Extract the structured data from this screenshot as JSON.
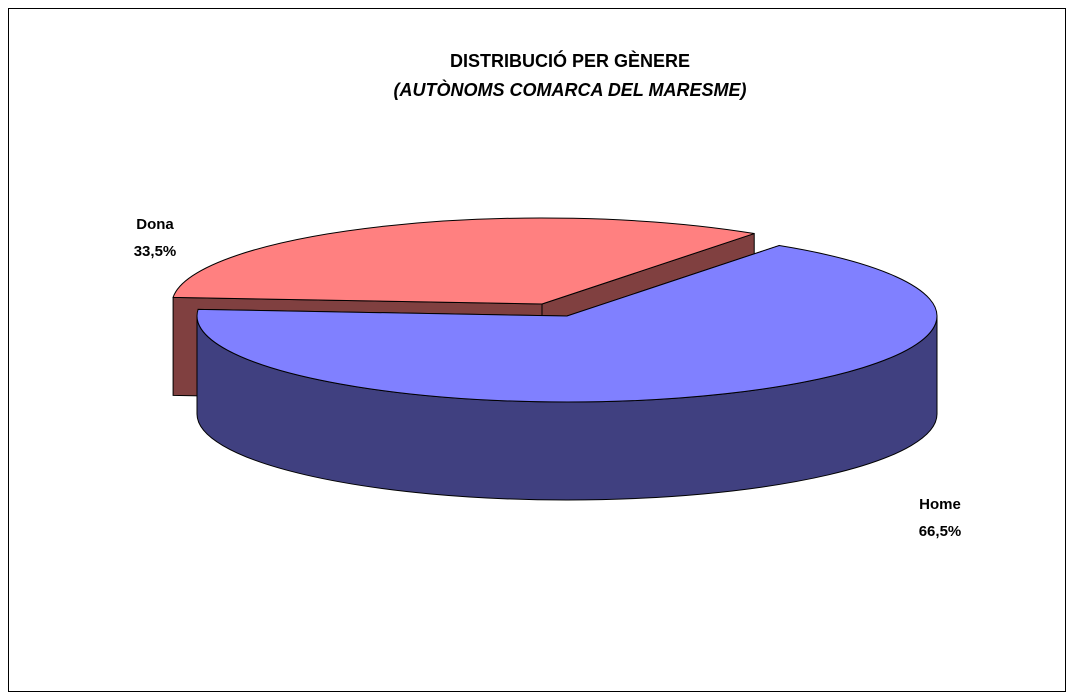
{
  "chart_data": {
    "type": "pie3d",
    "title": "DISTRIBUCIÓ PER GÈNERE",
    "subtitle": "(AUTÒNOMS COMARCA DEL MARESME)",
    "categories": [
      "Dona",
      "Home"
    ],
    "values": [
      33.5,
      66.5
    ],
    "value_labels": [
      "33,5%",
      "66,5%"
    ],
    "colors": [
      "#ff8080",
      "#8080ff"
    ]
  }
}
